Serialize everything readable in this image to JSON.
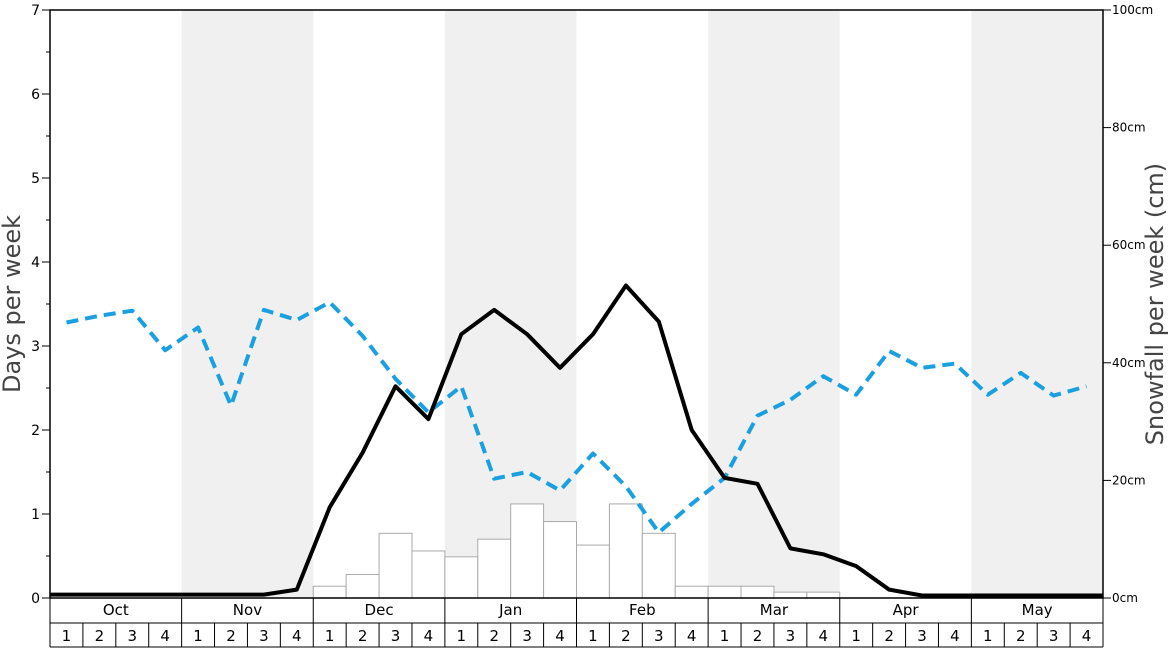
{
  "chart_data": {
    "type": "bar-line",
    "ylabel_left": "Days per week",
    "ylabel_right": "Snowfall per week (cm)",
    "ylim_left": [
      0,
      7
    ],
    "ylim_right": [
      0,
      100
    ],
    "left_ticks": [
      "0",
      "1",
      "2",
      "3",
      "4",
      "5",
      "6",
      "7"
    ],
    "right_ticks": [
      "0cm",
      "20cm",
      "40cm",
      "60cm",
      "80cm",
      "100cm"
    ],
    "months": [
      "Oct",
      "Nov",
      "Dec",
      "Jan",
      "Feb",
      "Mar",
      "Apr",
      "May"
    ],
    "weeks": [
      "1",
      "2",
      "3",
      "4"
    ],
    "colors": {
      "shaded_band": "#f0f0f0",
      "snow_days_line": "#000000",
      "dashed_line": "#1aa0e0",
      "bar_fill": "#ffffff",
      "bar_stroke": "#aaaaaa"
    },
    "snowfall_cm": [
      0,
      0,
      0,
      0,
      0,
      0,
      0,
      0,
      2,
      4,
      11,
      8,
      7,
      10,
      16,
      13,
      9,
      16,
      11,
      2,
      2,
      2,
      1,
      1,
      0,
      0,
      0,
      0,
      0,
      0,
      0,
      0
    ],
    "snow_days": [
      0.04,
      0.04,
      0.04,
      0.04,
      0.04,
      0.04,
      0.04,
      0.1,
      1.08,
      1.73,
      2.52,
      2.13,
      3.14,
      3.43,
      3.14,
      2.74,
      3.14,
      3.72,
      3.29,
      2.0,
      1.43,
      1.36,
      0.59,
      0.52,
      0.38,
      0.1,
      0.03,
      0.03,
      0.03,
      0.03,
      0.03,
      0.03
    ],
    "dashed_series": [
      3.28,
      3.36,
      3.42,
      2.95,
      3.22,
      2.29,
      3.43,
      3.31,
      3.52,
      3.12,
      2.61,
      2.21,
      2.52,
      1.42,
      1.5,
      1.28,
      1.72,
      1.33,
      0.78,
      1.12,
      1.43,
      2.17,
      2.36,
      2.64,
      2.42,
      2.94,
      2.74,
      2.79,
      2.42,
      2.68,
      2.41,
      2.52
    ]
  }
}
